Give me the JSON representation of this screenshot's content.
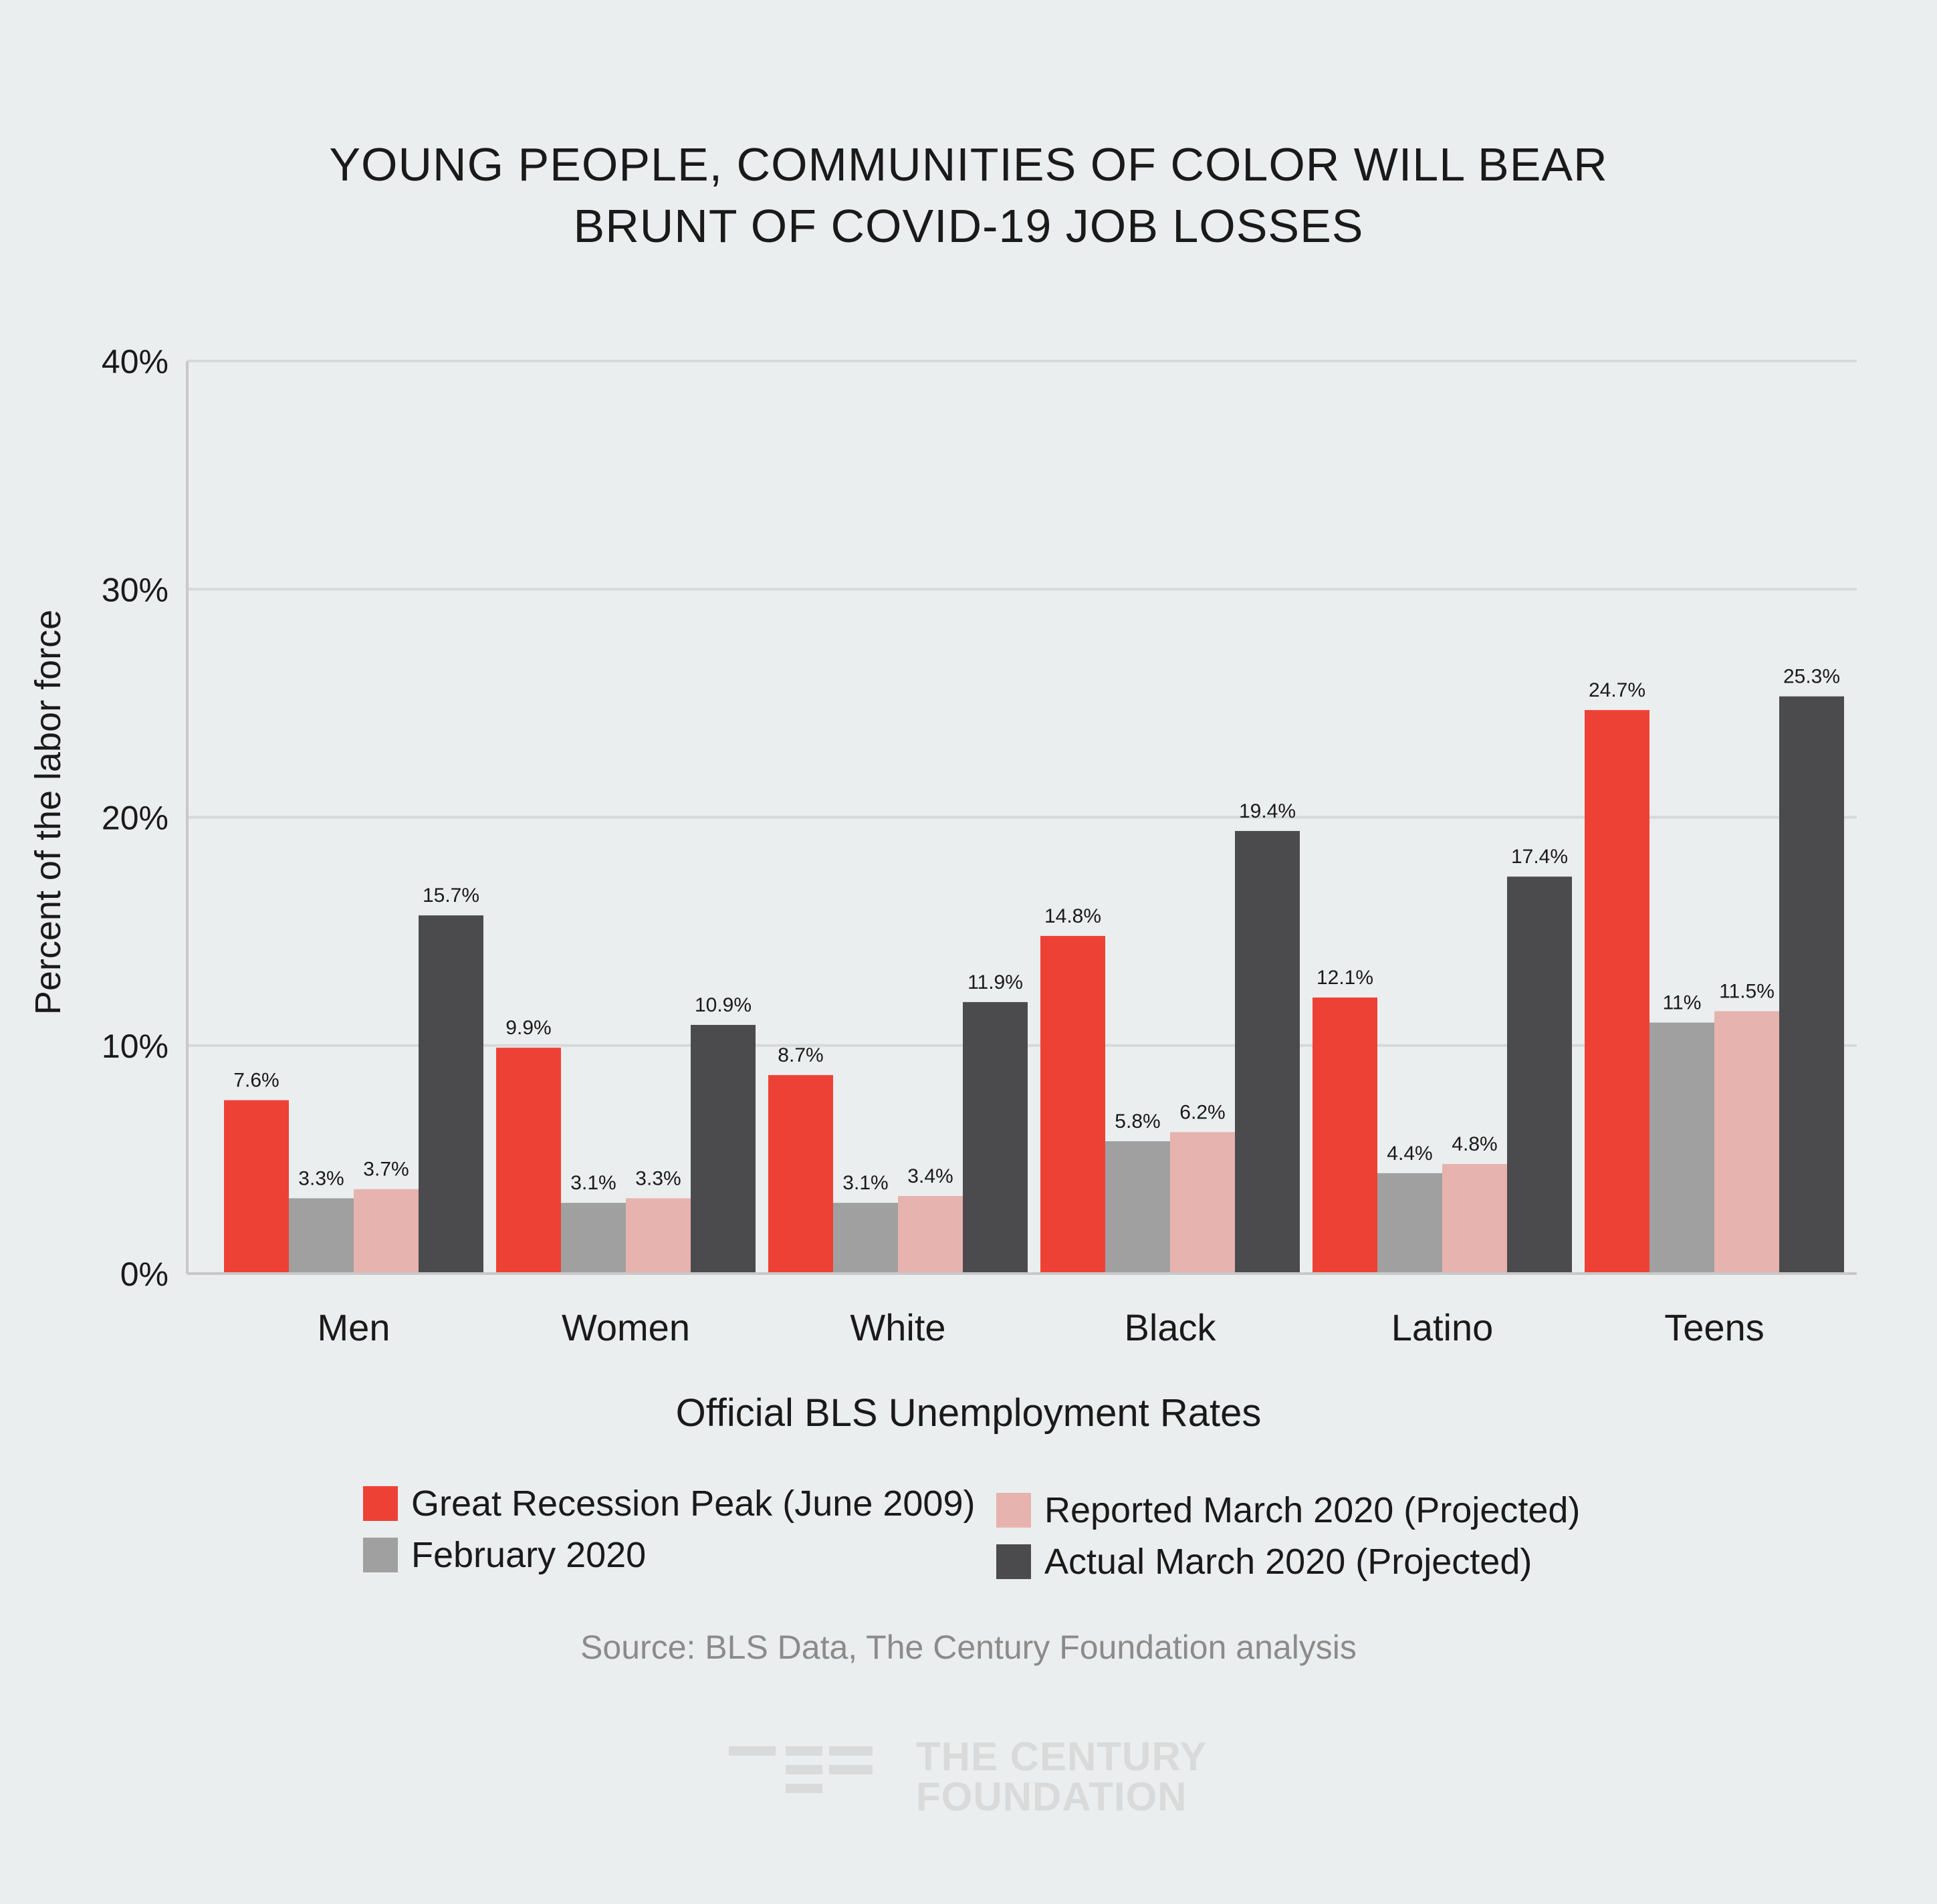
{
  "title": {
    "line1": "YOUNG PEOPLE, COMMUNITIES OF COLOR WILL BEAR",
    "line2": "BRUNT OF COVID-19 JOB LOSSES"
  },
  "colors": {
    "background": "#ebeeee",
    "great_recession": "#ee4136",
    "february": "#a0a0a0",
    "reported_march": "#e6b3ae",
    "actual_march": "#4b4b4d",
    "gridline": "#d6d8d9",
    "axis": "#c8c8c8"
  },
  "chart_data": {
    "type": "bar",
    "title": "YOUNG PEOPLE, COMMUNITIES OF COLOR WILL BEAR BRUNT OF COVID-19 JOB LOSSES",
    "xlabel": "Official BLS Unemployment Rates",
    "ylabel": "Percent of the labor force",
    "ylim": [
      0,
      40
    ],
    "yticks": [
      0,
      10,
      20,
      30,
      40
    ],
    "ytick_labels": [
      "0%",
      "10%",
      "20%",
      "30%",
      "40%"
    ],
    "grid": true,
    "legend_position": "bottom",
    "categories": [
      "Men",
      "Women",
      "White",
      "Black",
      "Latino",
      "Teens"
    ],
    "series": [
      {
        "name": "Great Recession Peak (June 2009)",
        "color": "#ee4136",
        "values": [
          7.6,
          9.9,
          8.7,
          14.8,
          12.1,
          24.7
        ],
        "labels": [
          "7.6%",
          "9.9%",
          "8.7%",
          "14.8%",
          "12.1%",
          "24.7%"
        ]
      },
      {
        "name": "February 2020",
        "color": "#a0a0a0",
        "values": [
          3.3,
          3.1,
          3.1,
          5.8,
          4.4,
          11
        ],
        "labels": [
          "3.3%",
          "3.1%",
          "3.1%",
          "5.8%",
          "4.4%",
          "11%"
        ]
      },
      {
        "name": "Reported March 2020 (Projected)",
        "color": "#e6b3ae",
        "values": [
          3.7,
          3.3,
          3.4,
          6.2,
          4.8,
          11.5
        ],
        "labels": [
          "3.7%",
          "3.3%",
          "3.4%",
          "6.2%",
          "4.8%",
          "11.5%"
        ]
      },
      {
        "name": "Actual March 2020 (Projected)",
        "color": "#4b4b4d",
        "values": [
          15.7,
          10.9,
          11.9,
          19.4,
          17.4,
          25.3
        ],
        "labels": [
          "15.7%",
          "10.9%",
          "11.9%",
          "19.4%",
          "17.4%",
          "25.3%"
        ]
      }
    ]
  },
  "legend": {
    "great_recession": "Great Recession Peak (June 2009)",
    "february": "February 2020",
    "reported_march": "Reported March 2020 (Projected)",
    "actual_march": "Actual March 2020 (Projected)"
  },
  "source": "Source: BLS Data, The Century Foundation analysis",
  "logo": {
    "line1": "THE CENTURY",
    "line2": "FOUNDATION",
    "icon": "century-foundation-logo-icon"
  }
}
